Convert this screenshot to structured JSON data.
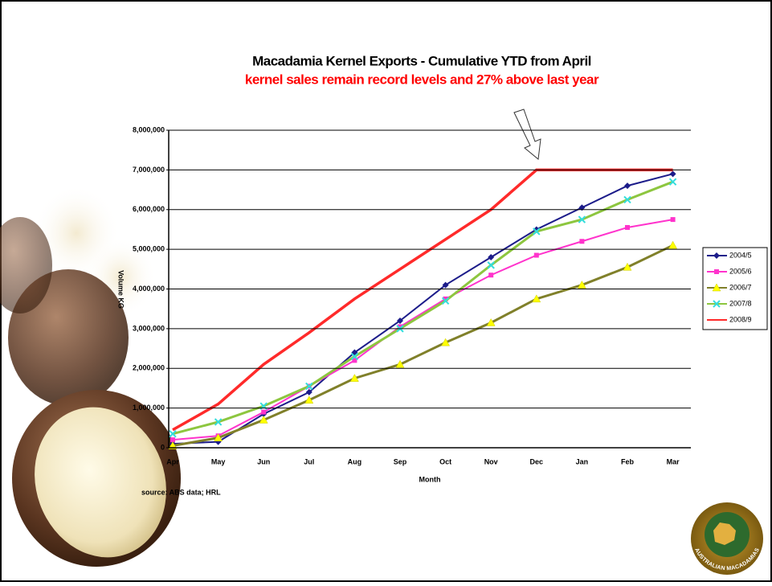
{
  "chart_data": {
    "type": "line",
    "title": "Macadamia Kernel Exports - Cumulative YTD from April",
    "subtitle": "kernel sales remain record levels and 27% above last year",
    "x_label": "Month",
    "y_label": "Volume KG",
    "source": "source: ABS data; HRL",
    "categories": [
      "Apr",
      "May",
      "Jun",
      "Jul",
      "Aug",
      "Sep",
      "Oct",
      "Nov",
      "Dec",
      "Jan",
      "Feb",
      "Mar"
    ],
    "series": [
      {
        "name": "2004/5",
        "color": "#1c1c8a",
        "marker": "diamond",
        "marker_color": "#1c1c8a",
        "values": [
          100000,
          150000,
          850000,
          1400000,
          2400000,
          3200000,
          4100000,
          4800000,
          5500000,
          6050000,
          6600000,
          6900000
        ]
      },
      {
        "name": "2005/6",
        "color": "#ff33cc",
        "marker": "square",
        "marker_color": "#ff33cc",
        "values": [
          200000,
          300000,
          900000,
          1550000,
          2200000,
          3050000,
          3750000,
          4350000,
          4850000,
          5200000,
          5550000,
          5750000
        ]
      },
      {
        "name": "2006/7",
        "color": "#80802a",
        "marker": "triangle",
        "marker_color": "#ffff00",
        "values": [
          50000,
          250000,
          700000,
          1200000,
          1750000,
          2100000,
          2650000,
          3150000,
          3750000,
          4100000,
          4550000,
          5100000
        ]
      },
      {
        "name": "2007/8",
        "color": "#8dc63f",
        "marker": "cross",
        "marker_color": "#33dddd",
        "values": [
          350000,
          650000,
          1050000,
          1550000,
          2300000,
          3000000,
          3700000,
          4600000,
          5450000,
          5750000,
          6250000,
          6700000
        ]
      },
      {
        "name": "2008/9",
        "color": "#ff2a2a",
        "marker": "none",
        "marker_color": "#ff2a2a",
        "values": [
          450000,
          1100000,
          2100000,
          2900000,
          3750000,
          4500000,
          5250000,
          6000000,
          7000000,
          7000000,
          7000000,
          7000000
        ]
      }
    ],
    "ylim": [
      0,
      8000000
    ],
    "yticks": [
      0,
      {
        "value": 1000000,
        "label": "1,000,000"
      },
      {
        "value": 2000000,
        "label": "2,000,000"
      },
      {
        "value": 3000000,
        "label": "3,000,000"
      },
      {
        "value": 4000000,
        "label": "4,000,000"
      },
      {
        "value": 5000000,
        "label": "5,000,000"
      },
      {
        "value": 6000000,
        "label": "6,000,000"
      },
      {
        "value": 7000000,
        "label": "7,000,000"
      },
      {
        "value": 8000000,
        "label": "8,000,000"
      }
    ],
    "grid": true,
    "legend": "right"
  },
  "logo": {
    "text": "AUSTRALIAN MACADAMIAS"
  }
}
